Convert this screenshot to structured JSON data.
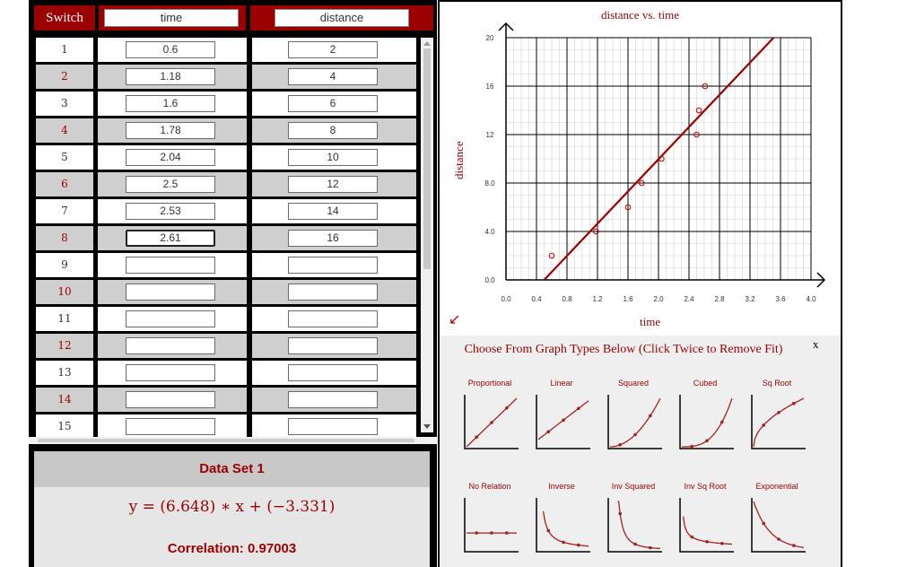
{
  "table": {
    "switch_label": "Switch",
    "col_x": "time",
    "col_y": "distance",
    "rows": [
      {
        "num": "1",
        "x": "0.6",
        "y": "2"
      },
      {
        "num": "2",
        "x": "1.18",
        "y": "4"
      },
      {
        "num": "3",
        "x": "1.6",
        "y": "6"
      },
      {
        "num": "4",
        "x": "1.78",
        "y": "8"
      },
      {
        "num": "5",
        "x": "2.04",
        "y": "10"
      },
      {
        "num": "6",
        "x": "2.5",
        "y": "12"
      },
      {
        "num": "7",
        "x": "2.53",
        "y": "14"
      },
      {
        "num": "8",
        "x": "2.61",
        "y": "16"
      },
      {
        "num": "9",
        "x": "",
        "y": ""
      },
      {
        "num": "10",
        "x": "",
        "y": ""
      },
      {
        "num": "11",
        "x": "",
        "y": ""
      },
      {
        "num": "12",
        "x": "",
        "y": ""
      },
      {
        "num": "13",
        "x": "",
        "y": ""
      },
      {
        "num": "14",
        "x": "",
        "y": ""
      },
      {
        "num": "15",
        "x": "",
        "y": ""
      }
    ]
  },
  "regression": {
    "title": "Data Set 1",
    "equation": "y = (6.648) ∗ x + (−3.331)",
    "correlation": "Correlation: 0.97003"
  },
  "graph": {
    "title": "distance vs. time",
    "xlabel": "time",
    "ylabel": "distance"
  },
  "chart_data": {
    "type": "scatter",
    "title": "distance vs. time",
    "xlabel": "time",
    "ylabel": "distance",
    "xlim": [
      0,
      4.0
    ],
    "ylim": [
      0,
      20
    ],
    "xticks": [
      "0.0",
      "0.4",
      "0.8",
      "1.2",
      "1.6",
      "2.0",
      "2.4",
      "2.8",
      "3.2",
      "3.6",
      "4.0"
    ],
    "yticks": [
      "0.0",
      "4.0",
      "8.0",
      "12",
      "16",
      "20"
    ],
    "grid": true,
    "series": [
      {
        "points": [
          [
            0.6,
            2
          ],
          [
            1.18,
            4
          ],
          [
            1.6,
            6
          ],
          [
            1.78,
            8
          ],
          [
            2.04,
            10
          ],
          [
            2.5,
            12
          ],
          [
            2.53,
            14
          ],
          [
            2.61,
            16
          ]
        ]
      }
    ],
    "fit_line": {
      "slope": 6.648,
      "intercept": -3.331
    },
    "colors": {
      "line": "#a00000",
      "points": "#c00000",
      "grid": "#000000",
      "minor_grid": "#cfcfcf"
    }
  },
  "graph_types": {
    "title": "Choose From Graph Types Below (Click Twice to Remove Fit)",
    "close_label": "x",
    "types": [
      {
        "label": "Proportional",
        "icon": "proportional-icon"
      },
      {
        "label": "Linear",
        "icon": "linear-icon"
      },
      {
        "label": "Squared",
        "icon": "squared-icon"
      },
      {
        "label": "Cubed",
        "icon": "cubed-icon"
      },
      {
        "label": "Sq Root",
        "icon": "sq-root-icon"
      },
      {
        "label": "No Relation",
        "icon": "no-relation-icon"
      },
      {
        "label": "Inverse",
        "icon": "inverse-icon"
      },
      {
        "label": "Inv Squared",
        "icon": "inv-squared-icon"
      },
      {
        "label": "Inv Sq Root",
        "icon": "inv-sq-root-icon"
      },
      {
        "label": "Exponential",
        "icon": "exponential-icon"
      }
    ]
  },
  "theme": {
    "accent": "#9b0000",
    "frame": "#000000",
    "row_alt": "#cfcfcf"
  }
}
